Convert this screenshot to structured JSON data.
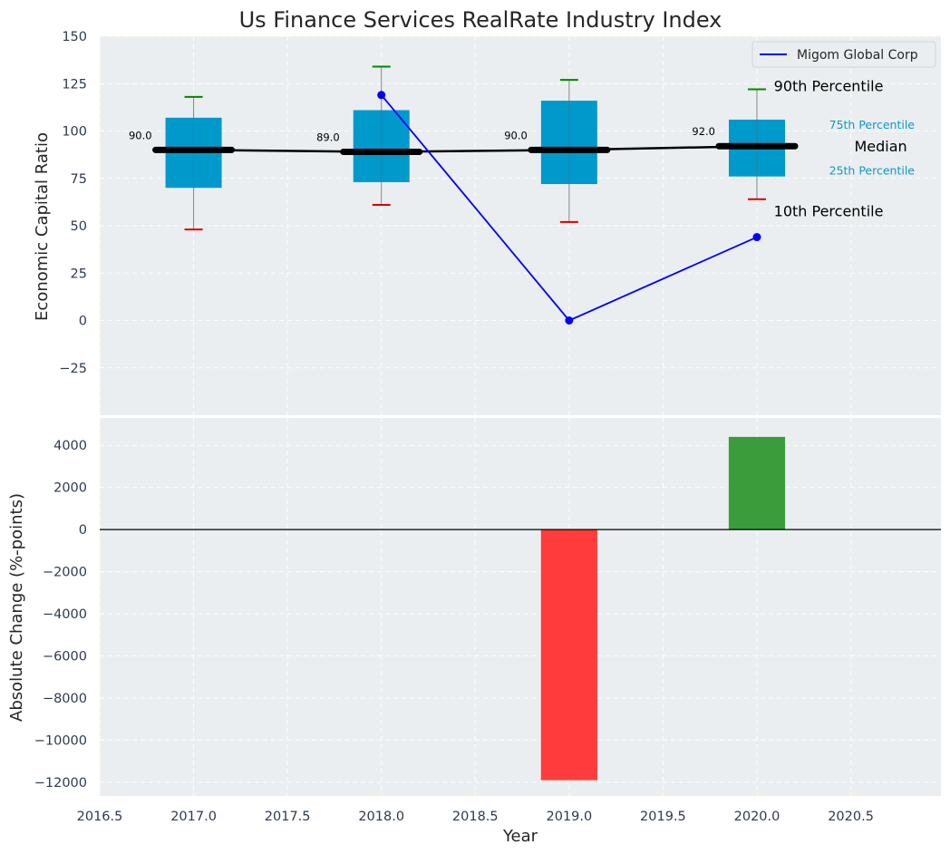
{
  "chart_data": {
    "title": "Us Finance Services RealRate Industry Index",
    "type": "box+line+bar",
    "xlabel": "Year",
    "top_panel": {
      "ylabel": "Economic Capital Ratio",
      "ylim": [
        -50,
        150
      ],
      "yticks": [
        150,
        125,
        100,
        75,
        50,
        25,
        0,
        -25
      ],
      "ytick_labels": [
        "150",
        "125",
        "100",
        "75",
        "50",
        "25",
        "0",
        "−25"
      ],
      "xlim": [
        2016.5,
        2020.98
      ],
      "grid": true,
      "boxes": [
        {
          "year": 2017,
          "p10": 48,
          "p25": 70,
          "median": 90,
          "p75": 107,
          "p90": 118,
          "median_label": "90.0"
        },
        {
          "year": 2018,
          "p10": 61,
          "p25": 73,
          "median": 89,
          "p75": 111,
          "p90": 134,
          "median_label": "89.0"
        },
        {
          "year": 2019,
          "p10": 52,
          "p25": 72,
          "median": 90,
          "p75": 116,
          "p90": 127,
          "median_label": "90.0"
        },
        {
          "year": 2020,
          "p10": 64,
          "p25": 76,
          "median": 92,
          "p75": 106,
          "p90": 122,
          "median_label": "92.0"
        }
      ],
      "median_line": {
        "x": [
          2017,
          2018,
          2019,
          2020
        ],
        "y": [
          90,
          89,
          90,
          92
        ]
      },
      "company_series": {
        "name": "Migom Global Corp",
        "x": [
          2018,
          2019,
          2020
        ],
        "y": [
          119,
          0,
          44
        ]
      },
      "legend": {
        "position": "top-right",
        "label": "Migom Global Corp"
      },
      "annotations": [
        {
          "text": "90th Percentile",
          "x": 2020.09,
          "y": 124,
          "style": "big",
          "color": "#000000"
        },
        {
          "text": "75th Percentile",
          "x": 2020.84,
          "y": 103,
          "style": "small",
          "color": "#0f99c4",
          "anchor": "end"
        },
        {
          "text": "Median",
          "x": 2020.8,
          "y": 92,
          "style": "big",
          "color": "#000000",
          "anchor": "end"
        },
        {
          "text": "25th Percentile",
          "x": 2020.84,
          "y": 79,
          "style": "small",
          "color": "#0f99c4",
          "anchor": "end"
        },
        {
          "text": "10th Percentile",
          "x": 2020.09,
          "y": 58,
          "style": "big",
          "color": "#000000"
        }
      ]
    },
    "bottom_panel": {
      "ylabel": "Absolute Change (%-points)",
      "ylim": [
        -12650,
        5300
      ],
      "yticks": [
        4000,
        2000,
        0,
        -2000,
        -4000,
        -6000,
        -8000,
        -10000,
        -12000
      ],
      "ytick_labels": [
        "4000",
        "2000",
        "0",
        "−2000",
        "−4000",
        "−6000",
        "−8000",
        "−10000",
        "−12000"
      ],
      "xticks": [
        2016.5,
        2017.0,
        2017.5,
        2018.0,
        2018.5,
        2019.0,
        2019.5,
        2020.0,
        2020.5
      ],
      "xtick_labels": [
        "2016.5",
        "2017.0",
        "2017.5",
        "2018.0",
        "2018.5",
        "2019.0",
        "2019.5",
        "2020.0",
        "2020.5"
      ],
      "bars": [
        {
          "year": 2019,
          "value": -11900,
          "color": "#ff3b3b"
        },
        {
          "year": 2020,
          "value": 4400,
          "color": "#3a9c3a"
        }
      ],
      "bar_width": 0.3
    },
    "colors": {
      "panel_bg": "#eaeef0",
      "box_fill": "#0099cc",
      "median_bar": "#000000",
      "whisker": "#888888",
      "cap_top": "#008800",
      "cap_bottom": "#dd0000",
      "company_line": "#0000ff",
      "zero_line": "#000000",
      "percentile_text": "#0f99c4"
    }
  }
}
